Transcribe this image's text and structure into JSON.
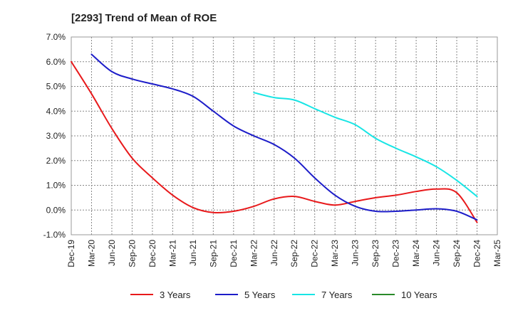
{
  "chart_data": {
    "type": "line",
    "title": "[2293]  Trend of Mean of ROE",
    "xlabel": "",
    "ylabel": "",
    "y_ticks": [
      "7.0%",
      "6.0%",
      "5.0%",
      "4.0%",
      "3.0%",
      "2.0%",
      "1.0%",
      "0.0%",
      "-1.0%"
    ],
    "ylim": [
      -1.0,
      7.0
    ],
    "x_ticks": [
      "Dec-19",
      "Mar-20",
      "Jun-20",
      "Sep-20",
      "Dec-20",
      "Mar-21",
      "Jun-21",
      "Sep-21",
      "Dec-21",
      "Mar-22",
      "Jun-22",
      "Sep-22",
      "Dec-22",
      "Mar-23",
      "Jun-23",
      "Sep-23",
      "Dec-23",
      "Mar-24",
      "Jun-24",
      "Sep-24",
      "Dec-24",
      "Mar-25"
    ],
    "grid": true,
    "legend_position": "bottom",
    "series": [
      {
        "name": "3 Years",
        "color": "#e8191b",
        "points": [
          [
            0,
            6.0
          ],
          [
            1,
            4.7
          ],
          [
            2,
            3.3
          ],
          [
            3,
            2.1
          ],
          [
            4,
            1.3
          ],
          [
            5,
            0.6
          ],
          [
            6,
            0.1
          ],
          [
            7,
            -0.1
          ],
          [
            8,
            -0.05
          ],
          [
            9,
            0.15
          ],
          [
            10,
            0.45
          ],
          [
            11,
            0.55
          ],
          [
            12,
            0.35
          ],
          [
            13,
            0.2
          ],
          [
            14,
            0.35
          ],
          [
            15,
            0.5
          ],
          [
            16,
            0.6
          ],
          [
            17,
            0.75
          ],
          [
            18,
            0.85
          ],
          [
            19,
            0.7
          ],
          [
            20,
            -0.5
          ]
        ]
      },
      {
        "name": "5 Years",
        "color": "#1d1dc9",
        "points": [
          [
            1,
            6.3
          ],
          [
            2,
            5.6
          ],
          [
            3,
            5.3
          ],
          [
            4,
            5.1
          ],
          [
            5,
            4.9
          ],
          [
            6,
            4.6
          ],
          [
            7,
            4.0
          ],
          [
            8,
            3.4
          ],
          [
            9,
            3.0
          ],
          [
            10,
            2.65
          ],
          [
            11,
            2.1
          ],
          [
            12,
            1.3
          ],
          [
            13,
            0.6
          ],
          [
            14,
            0.15
          ],
          [
            15,
            -0.05
          ],
          [
            16,
            -0.05
          ],
          [
            17,
            0.0
          ],
          [
            18,
            0.05
          ],
          [
            19,
            -0.05
          ],
          [
            20,
            -0.4
          ]
        ]
      },
      {
        "name": "7 Years",
        "color": "#18e5e5",
        "points": [
          [
            9,
            4.75
          ],
          [
            10,
            4.55
          ],
          [
            11,
            4.45
          ],
          [
            12,
            4.1
          ],
          [
            13,
            3.75
          ],
          [
            14,
            3.45
          ],
          [
            15,
            2.9
          ],
          [
            16,
            2.5
          ],
          [
            17,
            2.15
          ],
          [
            18,
            1.75
          ],
          [
            19,
            1.2
          ],
          [
            20,
            0.55
          ]
        ]
      },
      {
        "name": "10 Years",
        "color": "#2a8a2a",
        "points": []
      }
    ]
  }
}
